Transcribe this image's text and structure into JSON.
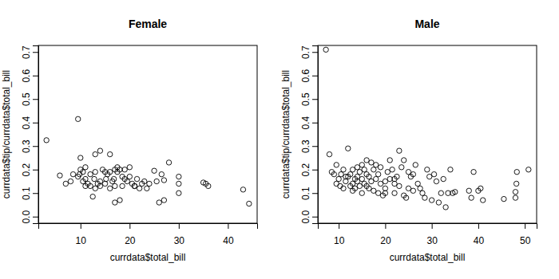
{
  "chart_data": [
    {
      "type": "scatter",
      "title": "Female",
      "xlabel": "currdata$total_bill",
      "ylabel": "currdata$tip/currdata$total_bill",
      "marker": "circle",
      "color": "#000000",
      "xlim": [
        1.42,
        45.95
      ],
      "ylim": [
        -0.028,
        0.728
      ],
      "xticks": [
        10,
        20,
        30,
        40
      ],
      "yticks": [
        {
          "value": 0,
          "label": "0.0"
        },
        0.1,
        0.2,
        0.3,
        0.4,
        0.5,
        0.6,
        0.7
      ],
      "x": [
        3.07,
        9.5,
        44.3,
        43.1,
        35,
        35.5,
        36,
        28,
        30,
        30,
        30,
        27,
        26,
        26.5,
        27,
        25,
        24,
        25.5,
        22,
        22.5,
        23,
        20,
        20,
        20.5,
        21,
        18,
        17,
        16,
        14,
        13,
        10,
        11,
        5.8,
        7,
        8,
        8.5,
        9.5,
        10,
        10.5,
        11,
        11.5,
        12,
        12.5,
        13,
        13.5,
        14,
        14.5,
        15,
        15.5,
        16,
        16.5,
        17,
        17.5,
        18,
        18.5,
        19,
        19.5,
        15,
        16,
        17,
        18.5,
        12,
        13,
        10.5,
        11,
        14,
        21.5,
        23.5,
        16.8,
        15.2,
        12.8,
        9.8,
        19,
        17.5,
        21
      ],
      "y": [
        0.325,
        0.415,
        0.055,
        0.115,
        0.145,
        0.14,
        0.13,
        0.23,
        0.17,
        0.14,
        0.1,
        0.07,
        0.06,
        0.18,
        0.155,
        0.195,
        0.14,
        0.15,
        0.12,
        0.14,
        0.15,
        0.21,
        0.17,
        0.14,
        0.13,
        0.07,
        0.06,
        0.265,
        0.28,
        0.265,
        0.25,
        0.21,
        0.175,
        0.14,
        0.15,
        0.18,
        0.17,
        0.2,
        0.19,
        0.16,
        0.14,
        0.13,
        0.085,
        0.12,
        0.14,
        0.15,
        0.2,
        0.19,
        0.18,
        0.19,
        0.15,
        0.2,
        0.19,
        0.2,
        0.17,
        0.16,
        0.15,
        0.14,
        0.12,
        0.13,
        0.13,
        0.18,
        0.19,
        0.15,
        0.13,
        0.13,
        0.16,
        0.12,
        0.16,
        0.16,
        0.16,
        0.18,
        0.2,
        0.21,
        0.13
      ]
    },
    {
      "type": "scatter",
      "title": "Male",
      "xlabel": "currdata$total_bill",
      "ylabel": "currdata$tip/currdata$total_bill",
      "marker": "circle",
      "color": "#000000",
      "xlim": [
        5.51,
        52.55
      ],
      "ylim": [
        -0.028,
        0.728
      ],
      "xticks": [
        10,
        20,
        30,
        40,
        50
      ],
      "yticks": [
        {
          "value": 0,
          "label": "0.0"
        },
        0.1,
        0.2,
        0.3,
        0.4,
        0.5,
        0.6,
        0.7
      ],
      "x": [
        7.25,
        8,
        8.5,
        9,
        9.5,
        9.5,
        10,
        10.3,
        10.5,
        11,
        11,
        11.5,
        12,
        12,
        12.5,
        13,
        13,
        13.5,
        13.5,
        14,
        14,
        14.5,
        14.5,
        15,
        15,
        15.5,
        15.5,
        16,
        16,
        16.5,
        16.5,
        17,
        17,
        17.5,
        17.5,
        18,
        18,
        18.5,
        18.5,
        19,
        19,
        19.5,
        20,
        20,
        20.5,
        21,
        21,
        21.5,
        22,
        22,
        22.5,
        23,
        23,
        23.5,
        24,
        24,
        24.5,
        25,
        25,
        25.5,
        26,
        26.5,
        27,
        27.5,
        28,
        28.5,
        29,
        29.5,
        30,
        30.5,
        31,
        31.5,
        32,
        32.5,
        33,
        33.5,
        34,
        34.5,
        35,
        38,
        38.5,
        39,
        40,
        40.5,
        41,
        45.5,
        48,
        48.2,
        48.3,
        50.8,
        48,
        12.5,
        14,
        16,
        20,
        22,
        26,
        13,
        11.5,
        15
      ],
      "y": [
        0.71,
        0.265,
        0.19,
        0.18,
        0.22,
        0.14,
        0.16,
        0.13,
        0.18,
        0.2,
        0.12,
        0.15,
        0.29,
        0.17,
        0.13,
        0.2,
        0.14,
        0.16,
        0.12,
        0.21,
        0.15,
        0.19,
        0.13,
        0.22,
        0.16,
        0.14,
        0.2,
        0.13,
        0.24,
        0.12,
        0.17,
        0.23,
        0.15,
        0.2,
        0.11,
        0.22,
        0.16,
        0.1,
        0.18,
        0.21,
        0.14,
        0.09,
        0.15,
        0.1,
        0.19,
        0.24,
        0.16,
        0.2,
        0.14,
        0.1,
        0.17,
        0.28,
        0.13,
        0.21,
        0.24,
        0.09,
        0.08,
        0.19,
        0.12,
        0.17,
        0.11,
        0.22,
        0.14,
        0.12,
        0.1,
        0.08,
        0.2,
        0.17,
        0.07,
        0.18,
        0.15,
        0.06,
        0.1,
        0.16,
        0.04,
        0.1,
        0.2,
        0.1,
        0.105,
        0.11,
        0.08,
        0.19,
        0.11,
        0.12,
        0.07,
        0.075,
        0.105,
        0.14,
        0.19,
        0.2,
        0.08,
        0.18,
        0.17,
        0.18,
        0.12,
        0.16,
        0.18,
        0.11,
        0.17,
        0.1
      ]
    }
  ]
}
